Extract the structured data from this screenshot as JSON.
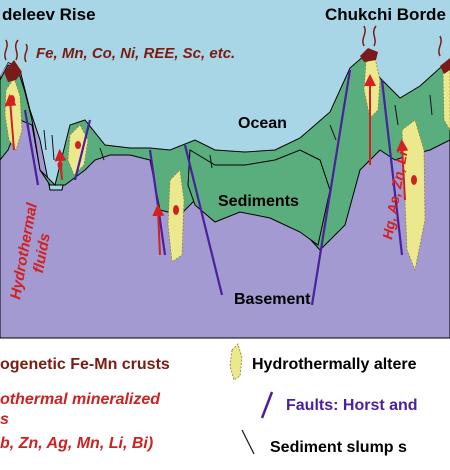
{
  "diagram": {
    "title_left": "deleev Rise",
    "title_right": "Chukchi Borde",
    "elements_label": "Fe, Mn, Co, Ni, REE, Sc, etc.",
    "ocean_label": "Ocean",
    "sediments_label": "Sediments",
    "basement_label": "Basement",
    "hydro_fluids_line1": "Hydrothermal",
    "hydro_fluids_line2": "fluids",
    "metals_rotated_label": "Hg, As, Zn, Li"
  },
  "legend": {
    "item1": "ogenetic Fe-Mn crusts",
    "item2_line1": "othermal mineralized",
    "item2_line2": "s",
    "item2_line3": "b, Zn, Ag, Mn, Li, Bi)",
    "item3": "Hydrothermally altere",
    "item4": "Faults: Horst and",
    "item5": "Sediment slump s"
  },
  "colors": {
    "ocean": "#a9d6e6",
    "sediments": "#5aae7e",
    "basement": "#a29ad0",
    "altered_zone": "#ece88e",
    "crust": "#7a1a1a",
    "mineralized": "#cc2222",
    "fault": "#4b1f9e",
    "arrow": "#d32020",
    "brown_text": "#7a1c12",
    "legend_bg": "#ffffff"
  }
}
